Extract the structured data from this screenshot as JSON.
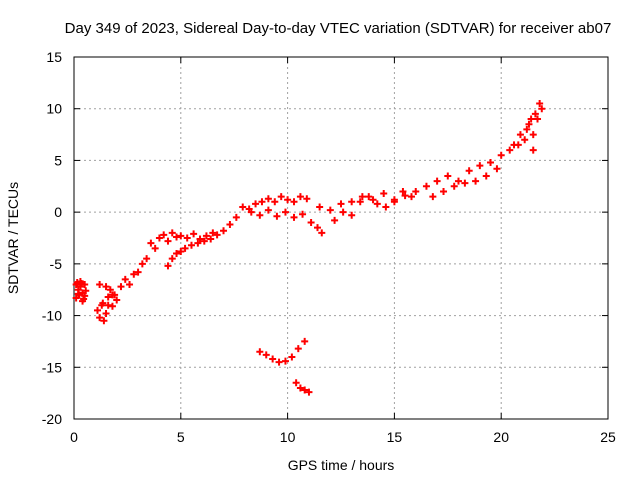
{
  "chart_data": {
    "type": "scatter",
    "title": "Day 349 of 2023, Sidereal Day-to-day VTEC variation (SDTVAR) for receiver ab07",
    "xlabel": "GPS time / hours",
    "ylabel": "SDTVAR / TECUs",
    "xlim": [
      0,
      25
    ],
    "ylim": [
      -20,
      15
    ],
    "xticks": [
      0,
      5,
      10,
      15,
      20,
      25
    ],
    "yticks": [
      -20,
      -15,
      -10,
      -5,
      0,
      5,
      10,
      15
    ],
    "grid": true,
    "marker": "plus",
    "color": "#ff0000",
    "series": [
      {
        "x": [
          0.1,
          0.15,
          0.2,
          0.25,
          0.3,
          0.35,
          0.4,
          0.45,
          0.5,
          0.55,
          0.1,
          0.2,
          0.3,
          0.4,
          0.5,
          1.1,
          1.2,
          1.3,
          1.4,
          1.5,
          1.6,
          1.7,
          1.8,
          1.9,
          1.2,
          1.35,
          1.5,
          1.6,
          1.8,
          2.0,
          2.2,
          2.4,
          2.6,
          2.8,
          3.0,
          3.2,
          3.4,
          3.6,
          3.8,
          4.0,
          4.2,
          4.4,
          4.6,
          4.8,
          5.0,
          5.3,
          5.6,
          5.9,
          6.2,
          6.5,
          4.4,
          4.6,
          4.8,
          5.0,
          5.2,
          5.5,
          5.8,
          6.1,
          6.4,
          6.7,
          7.0,
          7.3,
          7.6,
          7.9,
          8.2,
          8.5,
          8.8,
          9.1,
          9.4,
          9.7,
          10.0,
          10.3,
          10.6,
          10.9,
          8.3,
          8.7,
          9.1,
          9.5,
          9.9,
          10.3,
          10.7,
          11.1,
          11.4,
          11.6,
          11.5,
          12.0,
          12.5,
          13.0,
          13.5,
          14.0,
          14.5,
          15.0,
          15.5,
          16.0,
          12.2,
          12.6,
          13.0,
          13.4,
          13.8,
          14.2,
          14.6,
          15.0,
          15.4,
          15.8,
          16.5,
          17.0,
          17.5,
          18.0,
          18.5,
          19.0,
          19.5,
          20.0,
          20.4,
          20.8,
          16.8,
          17.3,
          17.8,
          18.3,
          18.8,
          19.3,
          19.8,
          20.6,
          20.9,
          21.1,
          21.3,
          21.5,
          21.7,
          21.9,
          21.2,
          21.4,
          21.6,
          21.8,
          21.5,
          8.7,
          9.0,
          9.3,
          9.6,
          9.9,
          10.2,
          10.5,
          10.8,
          10.4,
          10.6,
          10.8,
          11.0
        ],
        "y": [
          -7.0,
          -6.8,
          -7.5,
          -8.0,
          -7.2,
          -6.9,
          -7.8,
          -8.4,
          -7.0,
          -7.6,
          -8.3,
          -7.9,
          -6.7,
          -8.6,
          -8.1,
          -9.5,
          -10.2,
          -9.0,
          -10.5,
          -9.8,
          -8.2,
          -7.5,
          -9.1,
          -8.0,
          -7.0,
          -8.8,
          -7.2,
          -9.0,
          -8.0,
          -8.5,
          -7.2,
          -6.5,
          -7.0,
          -6.0,
          -5.8,
          -5.0,
          -4.5,
          -3.0,
          -3.5,
          -2.5,
          -2.2,
          -2.8,
          -2.0,
          -2.4,
          -2.3,
          -2.5,
          -2.1,
          -2.6,
          -2.3,
          -2.0,
          -5.2,
          -4.5,
          -4.0,
          -3.8,
          -3.5,
          -3.2,
          -3.0,
          -2.8,
          -2.6,
          -2.2,
          -1.8,
          -1.2,
          -0.5,
          0.5,
          0.3,
          0.8,
          1.0,
          1.3,
          1.0,
          1.5,
          1.2,
          1.0,
          1.5,
          1.3,
          0.0,
          -0.3,
          0.2,
          -0.4,
          0.0,
          -0.5,
          -0.2,
          -1.0,
          -1.5,
          -2.0,
          0.5,
          0.2,
          0.8,
          1.0,
          1.5,
          1.2,
          1.8,
          1.0,
          1.6,
          2.0,
          -0.8,
          0.0,
          -0.3,
          1.0,
          1.5,
          0.8,
          0.5,
          1.2,
          2.0,
          1.5,
          2.5,
          3.0,
          3.5,
          3.0,
          4.0,
          4.5,
          4.8,
          5.5,
          6.0,
          6.5,
          1.5,
          2.0,
          2.5,
          2.8,
          3.0,
          3.5,
          4.2,
          6.5,
          7.5,
          7.0,
          8.5,
          7.5,
          9.0,
          10.0,
          8.0,
          9.0,
          9.5,
          10.5,
          6.0,
          -13.5,
          -13.8,
          -14.2,
          -14.5,
          -14.4,
          -14.0,
          -13.2,
          -12.5,
          -16.5,
          -17.0,
          -17.2,
          -17.4
        ]
      }
    ]
  }
}
